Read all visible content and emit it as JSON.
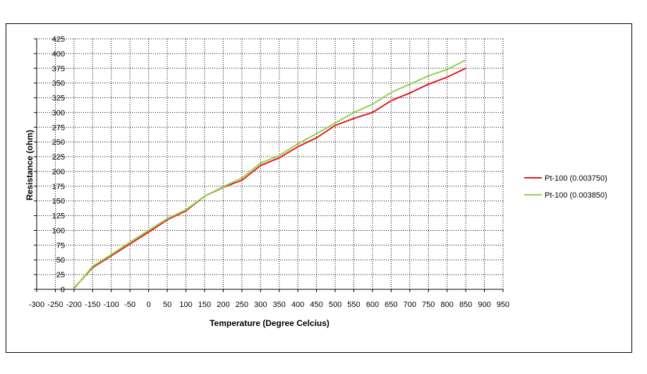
{
  "chart_data": {
    "type": "line",
    "title": "",
    "xlabel": "Temperature (Degree Celcius)",
    "ylabel": "Resistance (ohm)",
    "xlim": [
      -300,
      950
    ],
    "ylim": [
      0,
      425
    ],
    "x_ticks": [
      -300,
      -250,
      -200,
      -150,
      -100,
      -50,
      0,
      50,
      100,
      150,
      200,
      250,
      300,
      350,
      400,
      450,
      500,
      550,
      600,
      650,
      700,
      750,
      800,
      850,
      900,
      950
    ],
    "y_ticks": [
      0,
      25,
      50,
      75,
      100,
      125,
      150,
      175,
      200,
      225,
      250,
      275,
      300,
      325,
      350,
      375,
      400,
      425
    ],
    "grid": true,
    "legend_position": "right",
    "x": [
      -200,
      -150,
      -100,
      -50,
      0,
      50,
      100,
      150,
      200,
      250,
      300,
      350,
      400,
      450,
      500,
      550,
      600,
      650,
      700,
      750,
      800,
      850
    ],
    "series": [
      {
        "name": "Pt-100 (0.003750)",
        "color": "#e31a1c",
        "values": [
          2,
          37,
          57,
          77,
          97,
          118,
          133,
          158,
          173,
          185,
          210,
          223,
          242,
          257,
          278,
          290,
          300,
          320,
          333,
          348,
          360,
          375
        ]
      },
      {
        "name": "Pt-100 (0.003850)",
        "color": "#92d050",
        "values": [
          1,
          39,
          59,
          80,
          100,
          120,
          135,
          158,
          174,
          189,
          214,
          227,
          247,
          264,
          282,
          300,
          314,
          334,
          348,
          362,
          373,
          389
        ]
      }
    ]
  }
}
